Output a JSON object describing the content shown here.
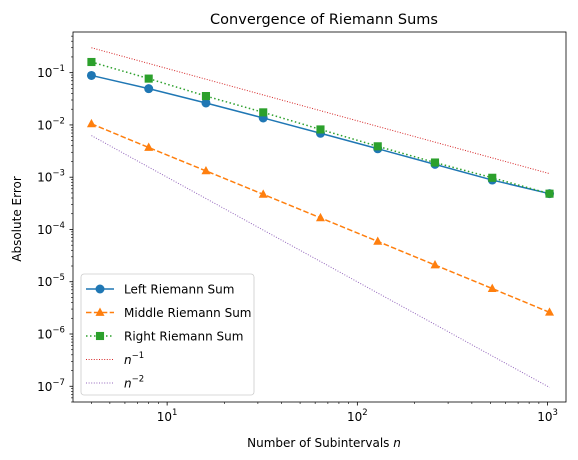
{
  "chart_data": {
    "type": "line",
    "title": "Convergence of Riemann Sums",
    "xlabel": "Number of Subintervals n",
    "ylabel": "Absolute Error",
    "xscale": "log",
    "yscale": "log",
    "xlim": [
      3.2,
      1250
    ],
    "ylim": [
      5e-08,
      0.6
    ],
    "grid": false,
    "legend_position": "lower-left",
    "x_ticks": [
      {
        "value": 10,
        "base": "10",
        "exp": "1"
      },
      {
        "value": 100,
        "base": "10",
        "exp": "2"
      },
      {
        "value": 1000,
        "base": "10",
        "exp": "3"
      }
    ],
    "y_ticks": [
      {
        "value": 1e-07,
        "base": "10",
        "exp": "−7"
      },
      {
        "value": 1e-06,
        "base": "10",
        "exp": "−6"
      },
      {
        "value": 1e-05,
        "base": "10",
        "exp": "−5"
      },
      {
        "value": 0.0001,
        "base": "10",
        "exp": "−4"
      },
      {
        "value": 0.001,
        "base": "10",
        "exp": "−3"
      },
      {
        "value": 0.01,
        "base": "10",
        "exp": "−2"
      },
      {
        "value": 0.1,
        "base": "10",
        "exp": "−1"
      }
    ],
    "series": [
      {
        "name": "Left Riemann Sum",
        "color": "#1f77b4",
        "dash": "solid",
        "marker": "circle",
        "x": [
          4,
          8,
          16,
          32,
          64,
          128,
          256,
          512,
          1024
        ],
        "y": [
          0.0885,
          0.0495,
          0.0263,
          0.0136,
          0.00693,
          0.0035,
          0.00176,
          0.000882,
          0.000484
        ]
      },
      {
        "name": "Middle Riemann Sum",
        "color": "#ff7f0e",
        "dash": "dashed",
        "marker": "triangle",
        "x": [
          4,
          8,
          16,
          32,
          64,
          128,
          256,
          512,
          1024
        ],
        "y": [
          0.0105,
          0.0037,
          0.00132,
          0.00047,
          0.000167,
          5.91e-05,
          2.09e-05,
          7.4e-06,
          2.6e-06
        ]
      },
      {
        "name": "Right Riemann Sum",
        "color": "#2ca02c",
        "dash": "dotted",
        "marker": "square",
        "x": [
          4,
          8,
          16,
          32,
          64,
          128,
          256,
          512,
          1024
        ],
        "y": [
          0.16,
          0.077,
          0.0357,
          0.0174,
          0.0082,
          0.0039,
          0.00191,
          0.000975,
          0.000484
        ]
      },
      {
        "name": "n",
        "name_sup": "−1",
        "color": "#d62728",
        "dash": "fine-dotted",
        "marker": "none",
        "x": [
          4,
          1024
        ],
        "y": [
          0.3,
          0.00117
        ]
      },
      {
        "name": "n",
        "name_sup": "−2",
        "color": "#9467bd",
        "dash": "fine-dotted",
        "marker": "none",
        "x": [
          4,
          1024
        ],
        "y": [
          0.00625,
          9.5e-08
        ]
      }
    ]
  }
}
